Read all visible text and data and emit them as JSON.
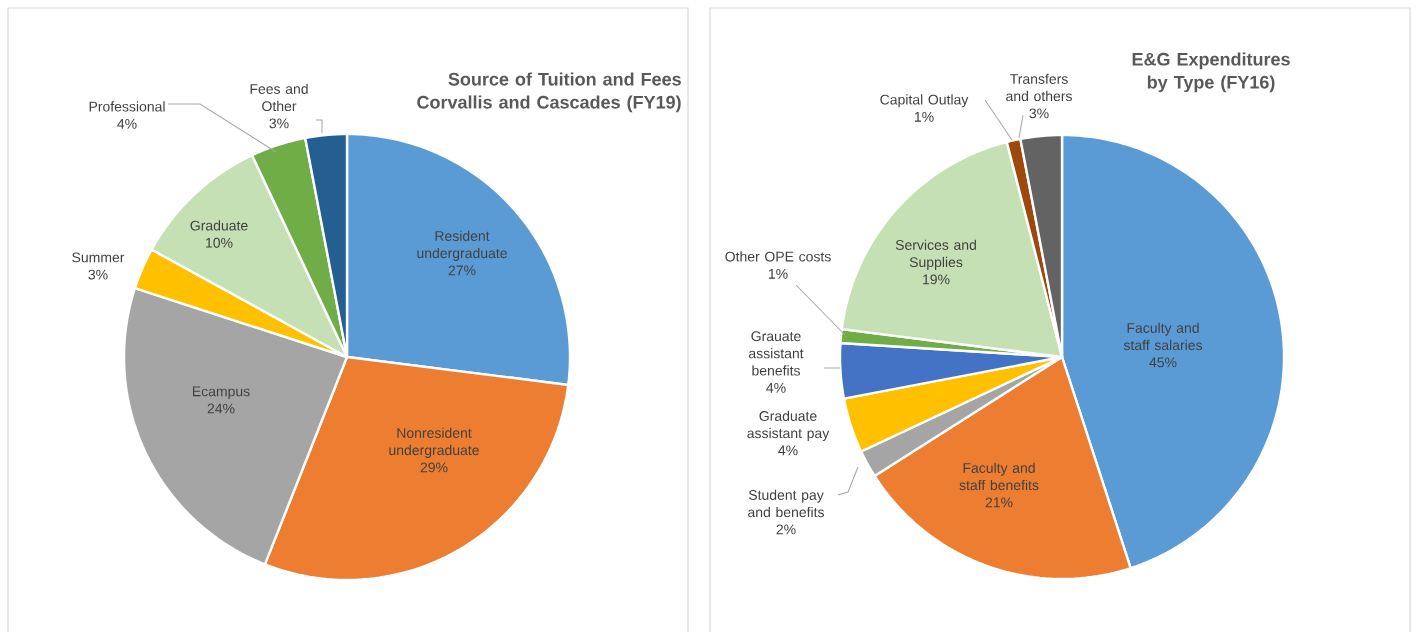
{
  "chart_data": [
    {
      "type": "pie",
      "title": "Source of Tuition and Fees Corvallis and Cascades (FY19)",
      "categories": [
        "Resident undergraduate",
        "Nonresident undergraduate",
        "Ecampus",
        "Summer",
        "Graduate",
        "Professional",
        "Fees and Other"
      ],
      "values": [
        27,
        29,
        24,
        3,
        10,
        4,
        3
      ],
      "value_labels": [
        "27%",
        "29%",
        "24%",
        "3%",
        "10%",
        "4%",
        "3%"
      ],
      "colors": [
        "#5b9bd5",
        "#ed7d31",
        "#a5a5a5",
        "#ffc000",
        "#c5e0b4",
        "#70ad47",
        "#255e91"
      ]
    },
    {
      "type": "pie",
      "title": "E&G Expenditures by Type (FY16)",
      "categories": [
        "Faculty and staff salaries",
        "Faculty and staff benefits",
        "Student pay and benefits",
        "Graduate assistant pay",
        "Grauate assistant benefits",
        "Other OPE costs",
        "Services and Supplies",
        "Capital Outlay",
        "Transfers and others"
      ],
      "values": [
        45,
        21,
        2,
        4,
        4,
        1,
        19,
        1,
        3
      ],
      "value_labels": [
        "45%",
        "21%",
        "2%",
        "4%",
        "4%",
        "1%",
        "19%",
        "1%",
        "3%"
      ],
      "colors": [
        "#5b9bd5",
        "#ed7d31",
        "#a5a5a5",
        "#ffc000",
        "#4472c4",
        "#70ad47",
        "#c5e0b4",
        "#9e480e",
        "#636363"
      ]
    }
  ]
}
